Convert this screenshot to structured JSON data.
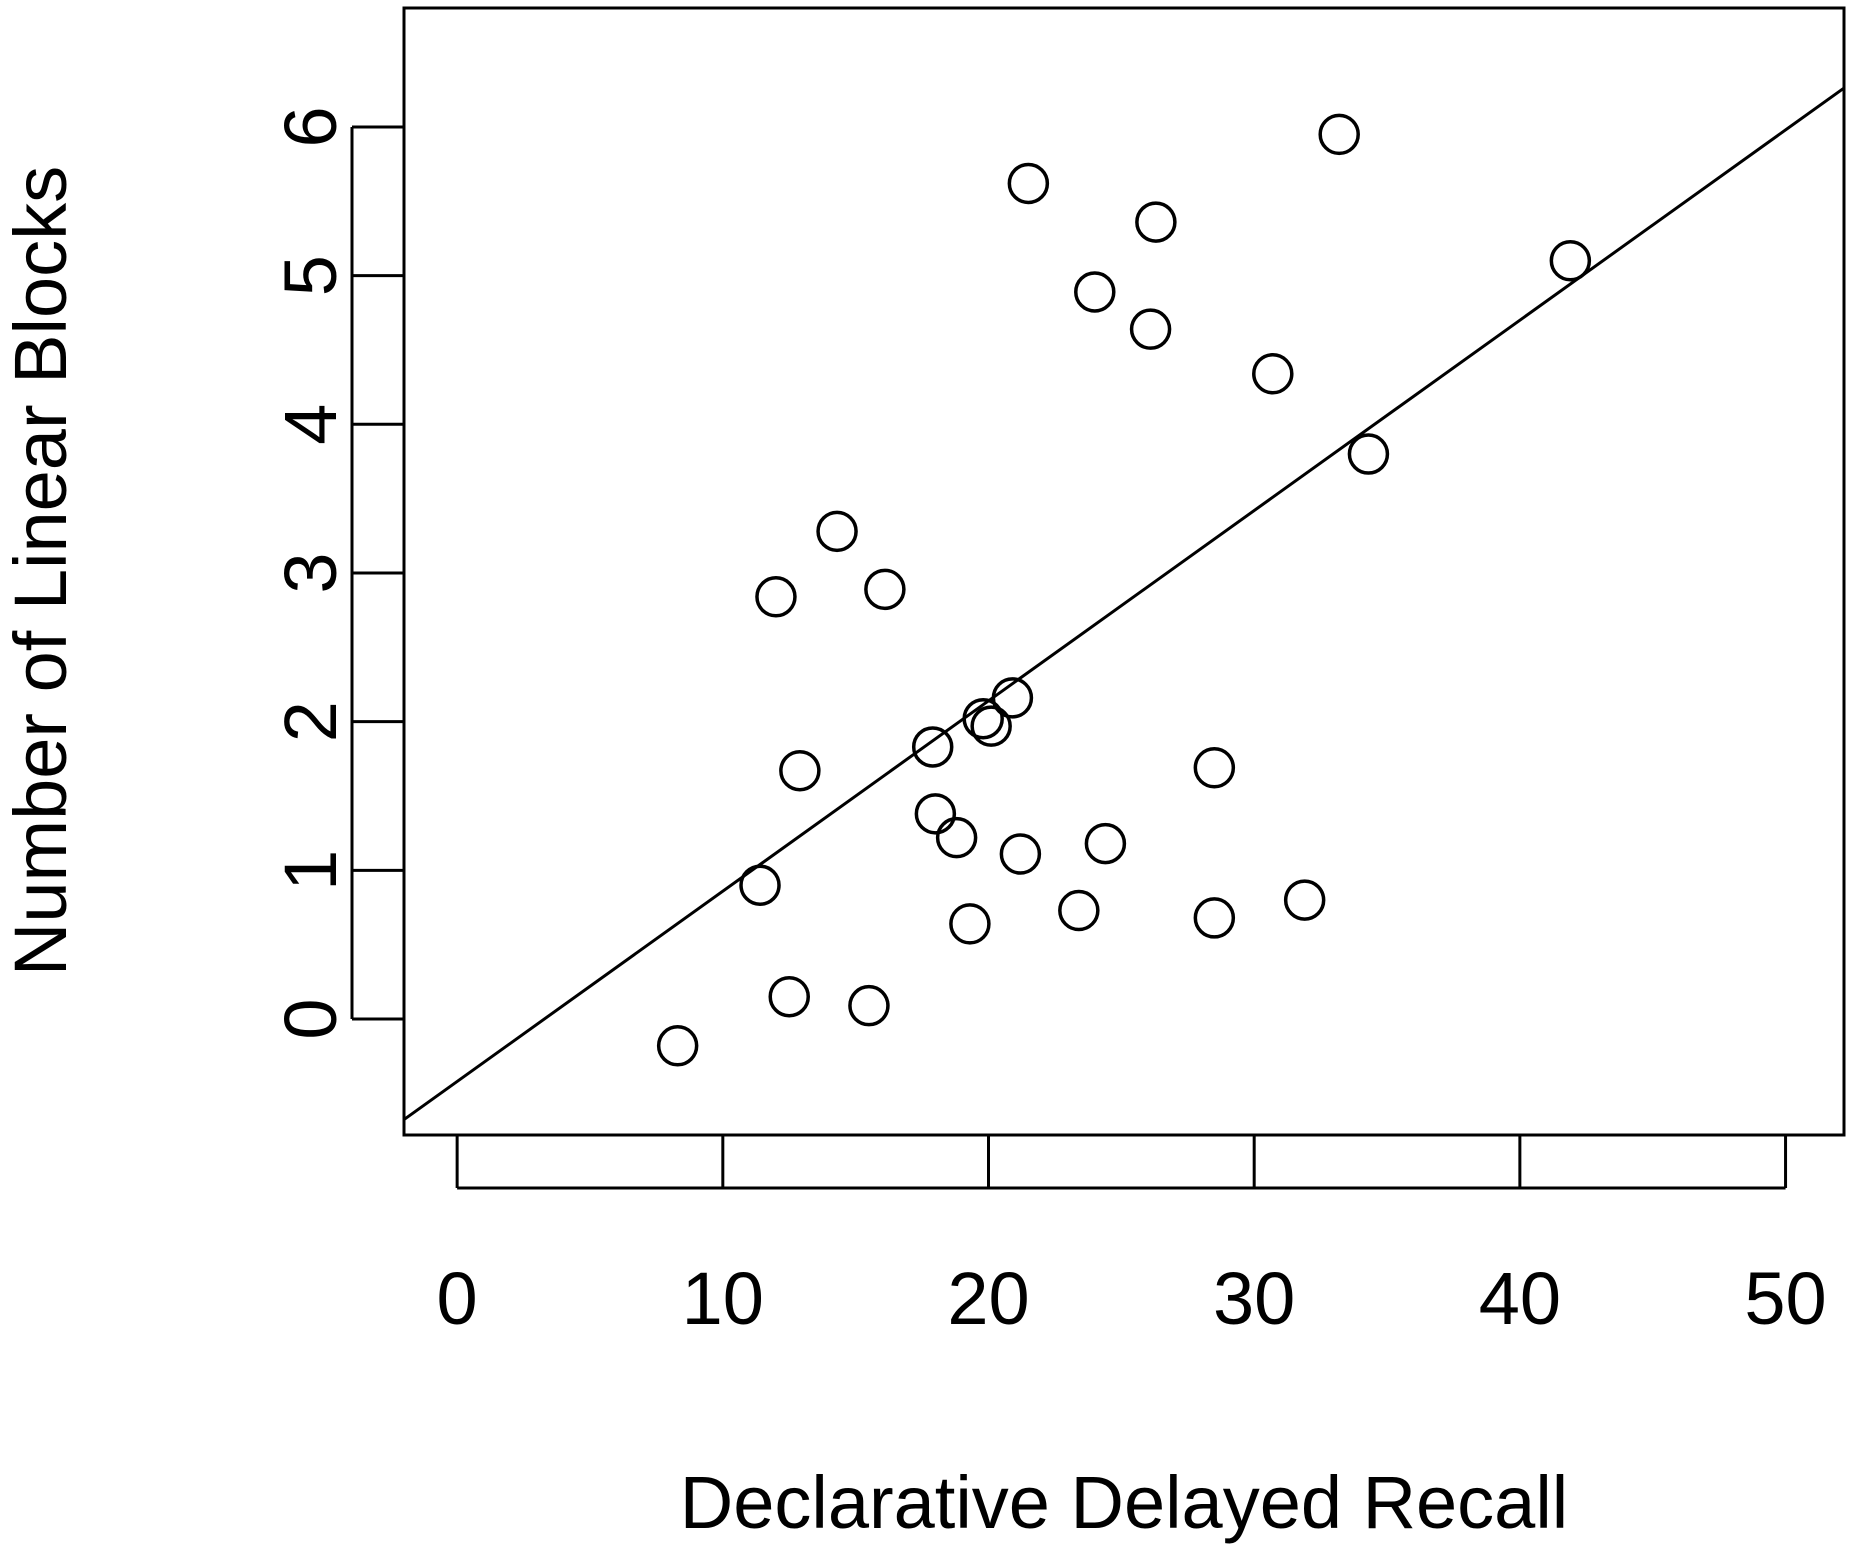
{
  "chart_data": {
    "type": "scatter",
    "title": "",
    "xlabel": "Declarative Delayed Recall",
    "ylabel": "Number of Linear Blocks",
    "xlim": [
      -2,
      52.2
    ],
    "ylim": [
      -0.78,
      6.8
    ],
    "x_ticks": [
      0,
      10,
      20,
      30,
      40,
      50
    ],
    "y_ticks": [
      0,
      1,
      2,
      3,
      4,
      5,
      6
    ],
    "grid": false,
    "marker": "open-circle",
    "series": [
      {
        "points": [
          {
            "x": 8.3,
            "y": -0.18
          },
          {
            "x": 11.4,
            "y": 0.9
          },
          {
            "x": 12.0,
            "y": 2.84
          },
          {
            "x": 12.5,
            "y": 0.15
          },
          {
            "x": 12.9,
            "y": 1.67
          },
          {
            "x": 14.3,
            "y": 3.28
          },
          {
            "x": 15.5,
            "y": 0.09
          },
          {
            "x": 16.1,
            "y": 2.89
          },
          {
            "x": 17.9,
            "y": 1.83
          },
          {
            "x": 18.0,
            "y": 1.38
          },
          {
            "x": 18.8,
            "y": 1.22
          },
          {
            "x": 19.3,
            "y": 0.64
          },
          {
            "x": 19.8,
            "y": 2.02
          },
          {
            "x": 20.1,
            "y": 1.97
          },
          {
            "x": 20.9,
            "y": 2.16
          },
          {
            "x": 21.2,
            "y": 1.11
          },
          {
            "x": 21.5,
            "y": 5.62
          },
          {
            "x": 23.4,
            "y": 0.73
          },
          {
            "x": 24.0,
            "y": 4.89
          },
          {
            "x": 24.4,
            "y": 1.18
          },
          {
            "x": 26.1,
            "y": 4.64
          },
          {
            "x": 26.3,
            "y": 5.36
          },
          {
            "x": 28.5,
            "y": 1.69
          },
          {
            "x": 28.5,
            "y": 0.68
          },
          {
            "x": 30.7,
            "y": 4.34
          },
          {
            "x": 31.9,
            "y": 0.8
          },
          {
            "x": 33.2,
            "y": 5.95
          },
          {
            "x": 34.3,
            "y": 3.8
          },
          {
            "x": 41.9,
            "y": 5.1
          }
        ]
      }
    ],
    "fit_line": {
      "type": "linear",
      "intercept": -0.42,
      "slope": 0.128
    }
  }
}
